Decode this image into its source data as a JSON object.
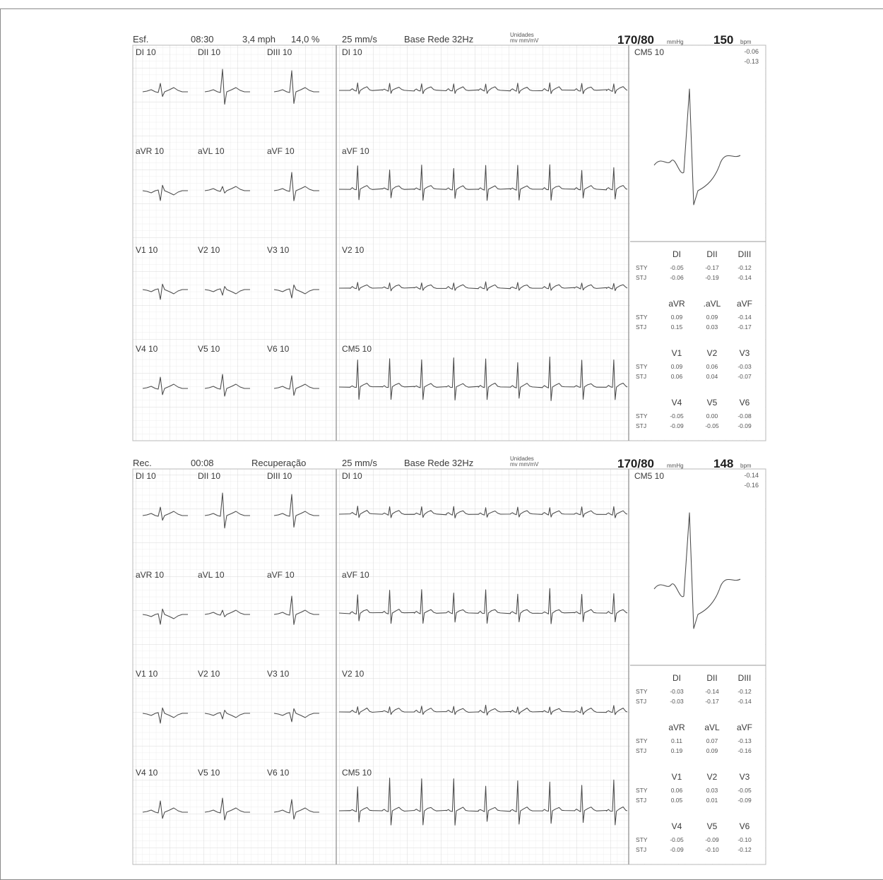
{
  "panels": [
    {
      "id": "exercise",
      "header": {
        "phase": "Esf.",
        "time": "08:30",
        "speed": "3,4 mph",
        "grade": "14,0 %",
        "paper_speed": "25 mm/s",
        "filter": "Base Rede  32Hz",
        "units_top": "Unidades",
        "units_bottom": "mv  mm/mV",
        "bp": "170/80",
        "bp_unit": "mmHg",
        "hr": "150",
        "hr_unit": "bpm"
      },
      "leads": [
        [
          "DI  10",
          "DII  10",
          "DIII  10"
        ],
        [
          "aVR  10",
          "aVL  10",
          "aVF  10"
        ],
        [
          "V1  10",
          "V2  10",
          "V3  10"
        ],
        [
          "V4  10",
          "V5  10",
          "V6  10"
        ]
      ],
      "rhythm_leads": [
        "DI  10",
        "aVF  10",
        "V2  10",
        "CM5  10"
      ],
      "zoom": {
        "label": "CM5  10",
        "val1": "-0.06",
        "val2": "-0.13"
      },
      "st_table": [
        {
          "leads": [
            "DI",
            "DII",
            "DIII"
          ],
          "STY": [
            "-0.05",
            "-0.17",
            "-0.12"
          ],
          "STJ": [
            "-0.06",
            "-0.19",
            "-0.14"
          ]
        },
        {
          "leads": [
            "aVR",
            ".aVL",
            "aVF"
          ],
          "STY": [
            "0.09",
            "0.09",
            "-0.14"
          ],
          "STJ": [
            "0.15",
            "0.03",
            "-0.17"
          ]
        },
        {
          "leads": [
            "V1",
            "V2",
            "V3"
          ],
          "STY": [
            "0.09",
            "0.06",
            "-0.03"
          ],
          "STJ": [
            "0.06",
            "0.04",
            "-0.07"
          ]
        },
        {
          "leads": [
            "V4",
            "V5",
            "V6"
          ],
          "STY": [
            "-0.05",
            "0.00",
            "-0.08"
          ],
          "STJ": [
            "-0.09",
            "-0.05",
            "-0.09"
          ]
        }
      ]
    },
    {
      "id": "recovery",
      "header": {
        "phase": "Rec.",
        "time": "00:08",
        "speed": "Recuperação",
        "grade": "",
        "paper_speed": "25 mm/s",
        "filter": "Base Rede  32Hz",
        "units_top": "Unidades",
        "units_bottom": "mv  mm/mV",
        "bp": "170/80",
        "bp_unit": "mmHg",
        "hr": "148",
        "hr_unit": "bpm"
      },
      "leads": [
        [
          "DI  10",
          "DII  10",
          "DIII  10"
        ],
        [
          "aVR  10",
          "aVL  10",
          "aVF  10"
        ],
        [
          "V1  10",
          "V2  10",
          "V3  10"
        ],
        [
          "V4  10",
          "V5  10",
          "V6  10"
        ]
      ],
      "rhythm_leads": [
        "DI  10",
        "aVF  10",
        "V2  10",
        "CM5  10"
      ],
      "zoom": {
        "label": "CM5  10",
        "val1": "-0.14",
        "val2": "-0.16"
      },
      "st_table": [
        {
          "leads": [
            "DI",
            "DII",
            "DIII"
          ],
          "STY": [
            "-0.03",
            "-0.14",
            "-0.12"
          ],
          "STJ": [
            "-0.03",
            "-0.17",
            "-0.14"
          ]
        },
        {
          "leads": [
            "aVR",
            "aVL",
            "aVF"
          ],
          "STY": [
            "0.11",
            "0.07",
            "-0.13"
          ],
          "STJ": [
            "0.19",
            "0.09",
            "-0.16"
          ]
        },
        {
          "leads": [
            "V1",
            "V2",
            "V3"
          ],
          "STY": [
            "0.06",
            "0.03",
            "-0.05"
          ],
          "STJ": [
            "0.05",
            "0.01",
            "-0.09"
          ]
        },
        {
          "leads": [
            "V4",
            "V5",
            "V6"
          ],
          "STY": [
            "-0.05",
            "-0.09",
            "-0.10"
          ],
          "STJ": [
            "-0.09",
            "-0.10",
            "-0.12"
          ]
        }
      ]
    }
  ],
  "row_labels": {
    "sty": "STY",
    "stj": "STJ"
  },
  "colors": {
    "grid_minor": "#e4e4e4",
    "grid_major": "#cfcfcf",
    "trace": "#4a4a4a",
    "border": "#8a8a8a"
  }
}
